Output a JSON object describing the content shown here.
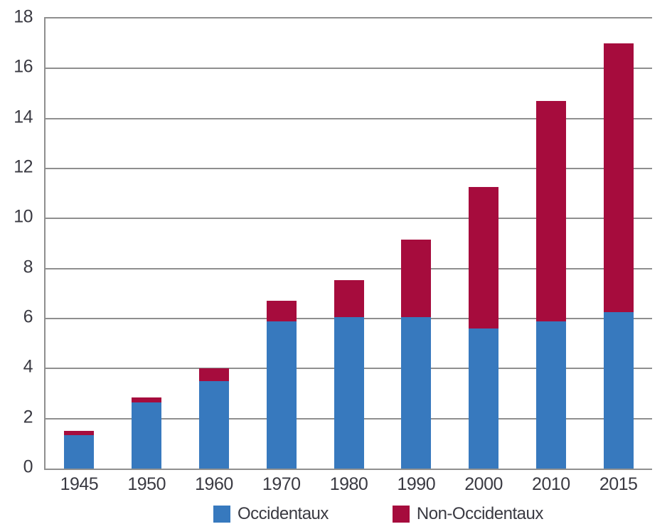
{
  "chart_data": {
    "type": "bar",
    "stacked": true,
    "orientation": "vertical",
    "categories": [
      "1945",
      "1950",
      "1960",
      "1970",
      "1980",
      "1990",
      "2000",
      "2010",
      "2015"
    ],
    "series": [
      {
        "name": "Occidentaux",
        "color": "#3779be",
        "values": [
          1.35,
          2.65,
          3.5,
          5.9,
          6.05,
          6.05,
          5.6,
          5.9,
          6.25
        ]
      },
      {
        "name": "Non-Occidentaux",
        "color": "#a60c3d",
        "values": [
          0.15,
          0.2,
          0.5,
          0.8,
          1.5,
          3.1,
          5.65,
          8.8,
          10.75
        ]
      }
    ],
    "totals": [
      1.5,
      2.85,
      4.0,
      6.7,
      7.55,
      9.15,
      11.25,
      14.7,
      17.0
    ],
    "title": "",
    "xlabel": "",
    "ylabel": "",
    "ylim": [
      0,
      18
    ],
    "yticks": [
      0,
      2,
      4,
      6,
      8,
      10,
      12,
      14,
      16,
      18
    ],
    "grid": "horizontal",
    "gridline_color": "#8f8f8f",
    "legend_position": "bottom"
  },
  "legend": {
    "items": [
      {
        "label": "Occidentaux",
        "color": "#3779be"
      },
      {
        "label": "Non-Occidentaux",
        "color": "#a60c3d"
      }
    ]
  },
  "colors": {
    "background": "#ffffff",
    "axis_text": "#3a3a42",
    "frame": "#8f8f8f"
  }
}
